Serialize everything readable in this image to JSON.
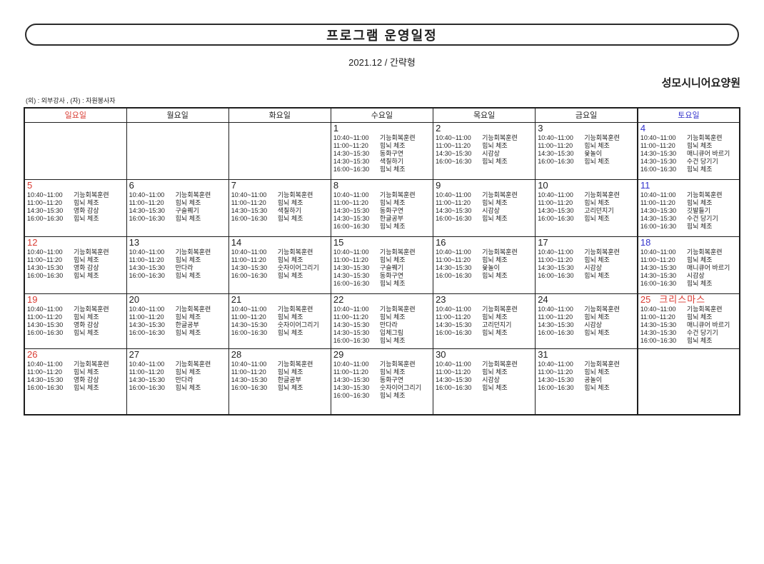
{
  "page": {
    "title": "프로그램 운영일정",
    "subtitle": "2021.12 / 간략형",
    "organization": "성모시니어요양원",
    "legend": "(외) : 외부강사 , (자) : 자원봉사자"
  },
  "colors": {
    "sunday": "#d93a31",
    "saturday": "#3333cc",
    "holiday": "#d93a31",
    "weekday": "#1f1f1f",
    "border": "#1e1e1e"
  },
  "calendar": {
    "day_headers": [
      {
        "key": "sun",
        "label": "일요일",
        "color_role": "sunday"
      },
      {
        "key": "mon",
        "label": "월요일",
        "color_role": "weekday"
      },
      {
        "key": "tue",
        "label": "화요일",
        "color_role": "weekday"
      },
      {
        "key": "wed",
        "label": "수요일",
        "color_role": "weekday"
      },
      {
        "key": "thu",
        "label": "목요일",
        "color_role": "weekday"
      },
      {
        "key": "fri",
        "label": "금요일",
        "color_role": "weekday"
      },
      {
        "key": "sat",
        "label": "토요일",
        "color_role": "saturday"
      }
    ],
    "weeks": [
      [
        null,
        null,
        null,
        {
          "date": "1",
          "color_role": "weekday",
          "note": "",
          "entries": [
            {
              "time": "10:40~11:00",
              "activity": "기능회복훈련"
            },
            {
              "time": "11:00~11:20",
              "activity": "힘뇌 체조"
            },
            {
              "time": "14:30~15:30",
              "activity": "동화구연"
            },
            {
              "time": "14:30~15:30",
              "activity": "색칠하기"
            },
            {
              "time": "16:00~16:30",
              "activity": "힘뇌 체조"
            }
          ]
        },
        {
          "date": "2",
          "color_role": "weekday",
          "note": "",
          "entries": [
            {
              "time": "10:40~11:00",
              "activity": "기능회복훈련"
            },
            {
              "time": "11:00~11:20",
              "activity": "힘뇌 체조"
            },
            {
              "time": "14:30~15:30",
              "activity": "시감상"
            },
            {
              "time": "16:00~16:30",
              "activity": "힘뇌 체조"
            }
          ]
        },
        {
          "date": "3",
          "color_role": "weekday",
          "note": "",
          "entries": [
            {
              "time": "10:40~11:00",
              "activity": "기능회복훈련"
            },
            {
              "time": "11:00~11:20",
              "activity": "힘뇌 체조"
            },
            {
              "time": "14:30~15:30",
              "activity": "윷놀이"
            },
            {
              "time": "16:00~16:30",
              "activity": "힘뇌 체조"
            }
          ]
        },
        {
          "date": "4",
          "color_role": "saturday",
          "note": "",
          "entries": [
            {
              "time": "10:40~11:00",
              "activity": "기능회복훈련"
            },
            {
              "time": "11:00~11:20",
              "activity": "힘뇌 체조"
            },
            {
              "time": "14:30~15:30",
              "activity": "매니큐어 바르기"
            },
            {
              "time": "14:30~15:30",
              "activity": "수건 당기기"
            },
            {
              "time": "16:00~16:30",
              "activity": "힘뇌 체조"
            }
          ]
        }
      ],
      [
        {
          "date": "5",
          "color_role": "sunday",
          "note": "",
          "entries": [
            {
              "time": "10:40~11:00",
              "activity": "기능회복훈련"
            },
            {
              "time": "11:00~11:20",
              "activity": "힘뇌 체조"
            },
            {
              "time": "14:30~15:30",
              "activity": "영화 감상"
            },
            {
              "time": "16:00~16:30",
              "activity": "힘뇌 체조"
            }
          ]
        },
        {
          "date": "6",
          "color_role": "weekday",
          "note": "",
          "entries": [
            {
              "time": "10:40~11:00",
              "activity": "기능회복훈련"
            },
            {
              "time": "11:00~11:20",
              "activity": "힘뇌 체조"
            },
            {
              "time": "14:30~15:30",
              "activity": "구슬꿰기"
            },
            {
              "time": "16:00~16:30",
              "activity": "힘뇌 체조"
            }
          ]
        },
        {
          "date": "7",
          "color_role": "weekday",
          "note": "",
          "entries": [
            {
              "time": "10:40~11:00",
              "activity": "기능회복훈련"
            },
            {
              "time": "11:00~11:20",
              "activity": "힘뇌 체조"
            },
            {
              "time": "14:30~15:30",
              "activity": "색칠하기"
            },
            {
              "time": "16:00~16:30",
              "activity": "힘뇌 체조"
            }
          ]
        },
        {
          "date": "8",
          "color_role": "weekday",
          "note": "",
          "entries": [
            {
              "time": "10:40~11:00",
              "activity": "기능회복훈련"
            },
            {
              "time": "11:00~11:20",
              "activity": "힘뇌 체조"
            },
            {
              "time": "14:30~15:30",
              "activity": "동화구연"
            },
            {
              "time": "14:30~15:30",
              "activity": "한글공부"
            },
            {
              "time": "16:00~16:30",
              "activity": "힘뇌 체조"
            }
          ]
        },
        {
          "date": "9",
          "color_role": "weekday",
          "note": "",
          "entries": [
            {
              "time": "10:40~11:00",
              "activity": "기능회복훈련"
            },
            {
              "time": "11:00~11:20",
              "activity": "힘뇌 체조"
            },
            {
              "time": "14:30~15:30",
              "activity": "시감상"
            },
            {
              "time": "16:00~16:30",
              "activity": "힘뇌 체조"
            }
          ]
        },
        {
          "date": "10",
          "color_role": "weekday",
          "note": "",
          "entries": [
            {
              "time": "10:40~11:00",
              "activity": "기능회복훈련"
            },
            {
              "time": "11:00~11:20",
              "activity": "힘뇌 체조"
            },
            {
              "time": "14:30~15:30",
              "activity": "고리던지기"
            },
            {
              "time": "16:00~16:30",
              "activity": "힘뇌 체조"
            }
          ]
        },
        {
          "date": "11",
          "color_role": "saturday",
          "note": "",
          "entries": [
            {
              "time": "10:40~11:00",
              "activity": "기능회복훈련"
            },
            {
              "time": "11:00~11:20",
              "activity": "힘뇌 체조"
            },
            {
              "time": "14:30~15:30",
              "activity": "깃발들기"
            },
            {
              "time": "14:30~15:30",
              "activity": "수건 당기기"
            },
            {
              "time": "16:00~16:30",
              "activity": "힘뇌 체조"
            }
          ]
        }
      ],
      [
        {
          "date": "12",
          "color_role": "sunday",
          "note": "",
          "entries": [
            {
              "time": "10:40~11:00",
              "activity": "기능회복훈련"
            },
            {
              "time": "11:00~11:20",
              "activity": "힘뇌 체조"
            },
            {
              "time": "14:30~15:30",
              "activity": "영화 감상"
            },
            {
              "time": "16:00~16:30",
              "activity": "힘뇌 체조"
            }
          ]
        },
        {
          "date": "13",
          "color_role": "weekday",
          "note": "",
          "entries": [
            {
              "time": "10:40~11:00",
              "activity": "기능회복훈련"
            },
            {
              "time": "11:00~11:20",
              "activity": "힘뇌 체조"
            },
            {
              "time": "14:30~15:30",
              "activity": "만다라"
            },
            {
              "time": "16:00~16:30",
              "activity": "힘뇌 체조"
            }
          ]
        },
        {
          "date": "14",
          "color_role": "weekday",
          "note": "",
          "entries": [
            {
              "time": "10:40~11:00",
              "activity": "기능회복훈련"
            },
            {
              "time": "11:00~11:20",
              "activity": "힘뇌 체조"
            },
            {
              "time": "14:30~15:30",
              "activity": "숫자이어그리기"
            },
            {
              "time": "16:00~16:30",
              "activity": "힘뇌 체조"
            }
          ]
        },
        {
          "date": "15",
          "color_role": "weekday",
          "note": "",
          "entries": [
            {
              "time": "10:40~11:00",
              "activity": "기능회복훈련"
            },
            {
              "time": "11:00~11:20",
              "activity": "힘뇌 체조"
            },
            {
              "time": "14:30~15:30",
              "activity": "구슬꿰기"
            },
            {
              "time": "14:30~15:30",
              "activity": "동화구연"
            },
            {
              "time": "16:00~16:30",
              "activity": "힘뇌 체조"
            }
          ]
        },
        {
          "date": "16",
          "color_role": "weekday",
          "note": "",
          "entries": [
            {
              "time": "10:40~11:00",
              "activity": "기능회복훈련"
            },
            {
              "time": "11:00~11:20",
              "activity": "힘뇌 체조"
            },
            {
              "time": "14:30~15:30",
              "activity": "윷놀이"
            },
            {
              "time": "16:00~16:30",
              "activity": "힘뇌 체조"
            }
          ]
        },
        {
          "date": "17",
          "color_role": "weekday",
          "note": "",
          "entries": [
            {
              "time": "10:40~11:00",
              "activity": "기능회복훈련"
            },
            {
              "time": "11:00~11:20",
              "activity": "힘뇌 체조"
            },
            {
              "time": "14:30~15:30",
              "activity": "시감상"
            },
            {
              "time": "16:00~16:30",
              "activity": "힘뇌 체조"
            }
          ]
        },
        {
          "date": "18",
          "color_role": "saturday",
          "note": "",
          "entries": [
            {
              "time": "10:40~11:00",
              "activity": "기능회복훈련"
            },
            {
              "time": "11:00~11:20",
              "activity": "힘뇌 체조"
            },
            {
              "time": "14:30~15:30",
              "activity": "매니큐어 바르기"
            },
            {
              "time": "14:30~15:30",
              "activity": "시감상"
            },
            {
              "time": "16:00~16:30",
              "activity": "힘뇌 체조"
            }
          ]
        }
      ],
      [
        {
          "date": "19",
          "color_role": "sunday",
          "note": "",
          "entries": [
            {
              "time": "10:40~11:00",
              "activity": "기능회복훈련"
            },
            {
              "time": "11:00~11:20",
              "activity": "힘뇌 체조"
            },
            {
              "time": "14:30~15:30",
              "activity": "영화 감상"
            },
            {
              "time": "16:00~16:30",
              "activity": "힘뇌 체조"
            }
          ]
        },
        {
          "date": "20",
          "color_role": "weekday",
          "note": "",
          "entries": [
            {
              "time": "10:40~11:00",
              "activity": "기능회복훈련"
            },
            {
              "time": "11:00~11:20",
              "activity": "힘뇌 체조"
            },
            {
              "time": "14:30~15:30",
              "activity": "한글공부"
            },
            {
              "time": "16:00~16:30",
              "activity": "힘뇌 체조"
            }
          ]
        },
        {
          "date": "21",
          "color_role": "weekday",
          "note": "",
          "entries": [
            {
              "time": "10:40~11:00",
              "activity": "기능회복훈련"
            },
            {
              "time": "11:00~11:20",
              "activity": "힘뇌 체조"
            },
            {
              "time": "14:30~15:30",
              "activity": "숫자이어그리기"
            },
            {
              "time": "16:00~16:30",
              "activity": "힘뇌 체조"
            }
          ]
        },
        {
          "date": "22",
          "color_role": "weekday",
          "note": "",
          "entries": [
            {
              "time": "10:40~11:00",
              "activity": "기능회복훈련"
            },
            {
              "time": "11:00~11:20",
              "activity": "힘뇌 체조"
            },
            {
              "time": "14:30~15:30",
              "activity": "만다라"
            },
            {
              "time": "14:30~15:30",
              "activity": "입체그림"
            },
            {
              "time": "16:00~16:30",
              "activity": "힘뇌 체조"
            }
          ]
        },
        {
          "date": "23",
          "color_role": "weekday",
          "note": "",
          "entries": [
            {
              "time": "10:40~11:00",
              "activity": "기능회복훈련"
            },
            {
              "time": "11:00~11:20",
              "activity": "힘뇌 체조"
            },
            {
              "time": "14:30~15:30",
              "activity": "고리던지기"
            },
            {
              "time": "16:00~16:30",
              "activity": "힘뇌 체조"
            }
          ]
        },
        {
          "date": "24",
          "color_role": "weekday",
          "note": "",
          "entries": [
            {
              "time": "10:40~11:00",
              "activity": "기능회복훈련"
            },
            {
              "time": "11:00~11:20",
              "activity": "힘뇌 체조"
            },
            {
              "time": "14:30~15:30",
              "activity": "시감상"
            },
            {
              "time": "16:00~16:30",
              "activity": "힘뇌 체조"
            }
          ]
        },
        {
          "date": "25",
          "color_role": "holiday",
          "note": "크리스마스",
          "entries": [
            {
              "time": "10:40~11:00",
              "activity": "기능회복훈련"
            },
            {
              "time": "11:00~11:20",
              "activity": "힘뇌 체조"
            },
            {
              "time": "14:30~15:30",
              "activity": "매니큐어 바르기"
            },
            {
              "time": "14:30~15:30",
              "activity": "수건 당기기"
            },
            {
              "time": "16:00~16:30",
              "activity": "힘뇌 체조"
            }
          ]
        }
      ],
      [
        {
          "date": "26",
          "color_role": "sunday",
          "note": "",
          "entries": [
            {
              "time": "10:40~11:00",
              "activity": "기능회복훈련"
            },
            {
              "time": "11:00~11:20",
              "activity": "힘뇌 체조"
            },
            {
              "time": "14:30~15:30",
              "activity": "영화 감상"
            },
            {
              "time": "16:00~16:30",
              "activity": "힘뇌 체조"
            }
          ]
        },
        {
          "date": "27",
          "color_role": "weekday",
          "note": "",
          "entries": [
            {
              "time": "10:40~11:00",
              "activity": "기능회복훈련"
            },
            {
              "time": "11:00~11:20",
              "activity": "힘뇌 체조"
            },
            {
              "time": "14:30~15:30",
              "activity": "만다라"
            },
            {
              "time": "16:00~16:30",
              "activity": "힘뇌 체조"
            }
          ]
        },
        {
          "date": "28",
          "color_role": "weekday",
          "note": "",
          "entries": [
            {
              "time": "10:40~11:00",
              "activity": "기능회복훈련"
            },
            {
              "time": "11:00~11:20",
              "activity": "힘뇌 체조"
            },
            {
              "time": "14:30~15:30",
              "activity": "한글공부"
            },
            {
              "time": "16:00~16:30",
              "activity": "힘뇌 체조"
            }
          ]
        },
        {
          "date": "29",
          "color_role": "weekday",
          "note": "",
          "entries": [
            {
              "time": "10:40~11:00",
              "activity": "기능회복훈련"
            },
            {
              "time": "11:00~11:20",
              "activity": "힘뇌 체조"
            },
            {
              "time": "14:30~15:30",
              "activity": "동화구연"
            },
            {
              "time": "14:30~15:30",
              "activity": "숫자이어그리기"
            },
            {
              "time": "16:00~16:30",
              "activity": "힘뇌 체조"
            }
          ]
        },
        {
          "date": "30",
          "color_role": "weekday",
          "note": "",
          "entries": [
            {
              "time": "10:40~11:00",
              "activity": "기능회복훈련"
            },
            {
              "time": "11:00~11:20",
              "activity": "힘뇌 체조"
            },
            {
              "time": "14:30~15:30",
              "activity": "시감상"
            },
            {
              "time": "16:00~16:30",
              "activity": "힘뇌 체조"
            }
          ]
        },
        {
          "date": "31",
          "color_role": "weekday",
          "note": "",
          "entries": [
            {
              "time": "10:40~11:00",
              "activity": "기능회복훈련"
            },
            {
              "time": "11:00~11:20",
              "activity": "힘뇌 체조"
            },
            {
              "time": "14:30~15:30",
              "activity": "공놀이"
            },
            {
              "time": "16:00~16:30",
              "activity": "힘뇌 체조"
            }
          ]
        },
        null
      ]
    ]
  }
}
